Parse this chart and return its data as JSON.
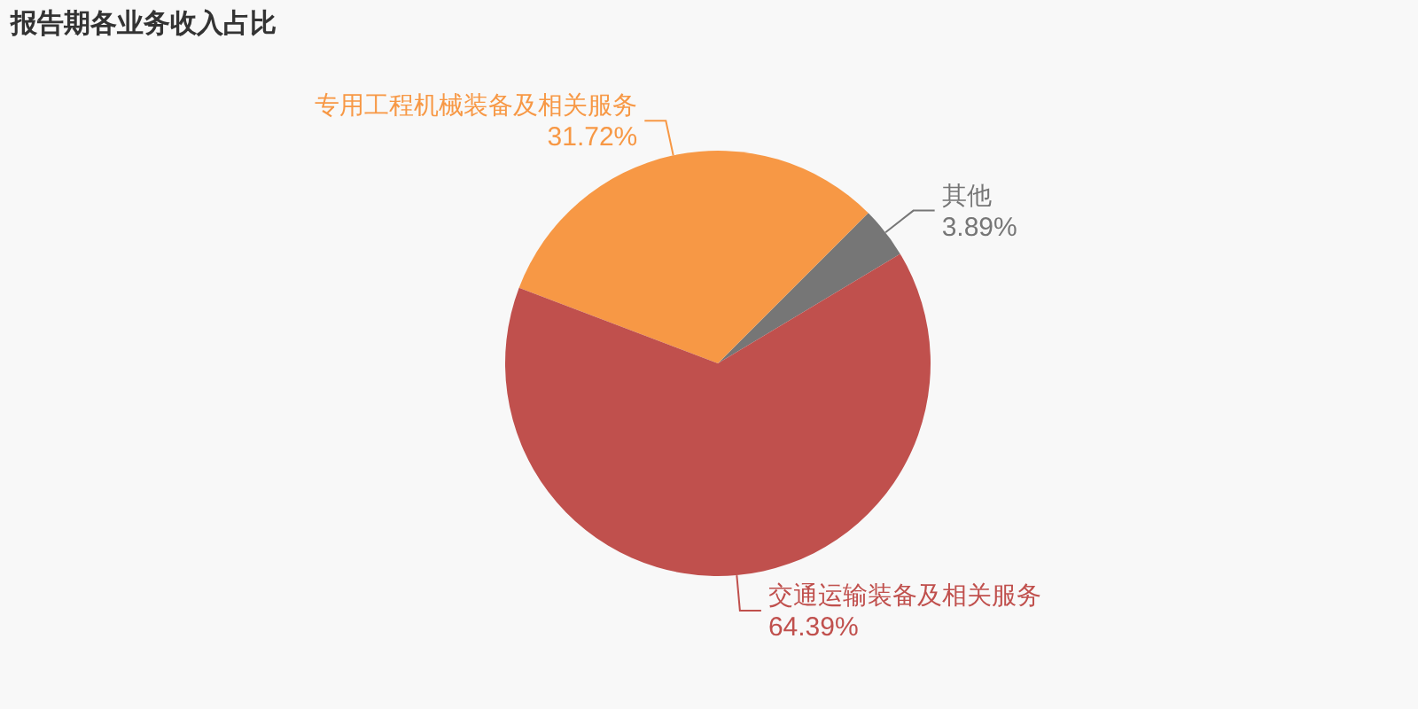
{
  "chart_data": {
    "type": "pie",
    "title": "报告期各业务收入占比",
    "categories": [
      "其他",
      "专用工程机械装备及相关服务",
      "交通运输装备及相关服务"
    ],
    "values": [
      3.89,
      31.72,
      64.39
    ],
    "colors": [
      "#767676",
      "#f79845",
      "#c0504d"
    ],
    "value_labels": [
      "3.89%",
      "31.72%",
      "64.39%"
    ],
    "legend": false
  }
}
